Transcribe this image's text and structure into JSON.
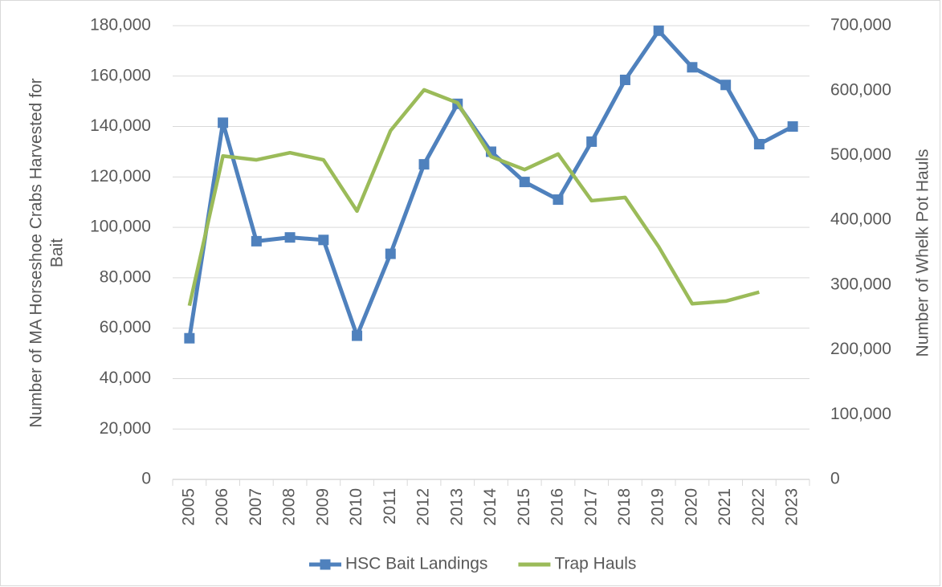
{
  "chart_data": {
    "type": "line",
    "ylabel": [
      "Number of MA Horseshoe Crabs Harvested for",
      "Bait"
    ],
    "y2label": "Number of Whelk Pot Hauls",
    "categories": [
      "2005",
      "2006",
      "2007",
      "2008",
      "2009",
      "2010",
      "2011",
      "2012",
      "2013",
      "2014",
      "2015",
      "2016",
      "2017",
      "2018",
      "2019",
      "2020",
      "2021",
      "2022",
      "2023"
    ],
    "series": [
      {
        "name": "HSC Bait Landings",
        "color": "#4f81bd",
        "marker": "square",
        "values": [
          56000,
          141500,
          94500,
          96000,
          95000,
          57000,
          89500,
          125000,
          149000,
          130000,
          118000,
          111000,
          134000,
          158500,
          178000,
          163500,
          156500,
          133000,
          140000
        ]
      },
      {
        "name": "Trap Hauls",
        "color": "#9bbb59",
        "axis": "y2",
        "values": [
          268000,
          499000,
          493000,
          504000,
          493000,
          414000,
          538000,
          601000,
          581000,
          498000,
          478000,
          502000,
          430000,
          435000,
          359000,
          271000,
          275000,
          289000,
          null
        ]
      }
    ],
    "ylim": [
      0,
      180000
    ],
    "yticks": [
      0,
      {
        "value": 20000,
        "label": "20,000"
      },
      {
        "value": 40000,
        "label": "40,000"
      },
      {
        "value": 60000,
        "label": "60,000"
      },
      {
        "value": 80000,
        "label": "80,000"
      },
      {
        "value": 100000,
        "label": "100,000"
      },
      {
        "value": 120000,
        "label": "120,000"
      },
      {
        "value": 140000,
        "label": "140,000"
      },
      {
        "value": 160000,
        "label": "160,000"
      },
      {
        "value": 180000,
        "label": "180,000"
      }
    ],
    "y2lim": [
      0,
      700000
    ],
    "y2ticks": [
      0,
      {
        "value": 100000,
        "label": "100,000"
      },
      {
        "value": 200000,
        "label": "200,000"
      },
      {
        "value": 300000,
        "label": "300,000"
      },
      {
        "value": 400000,
        "label": "400,000"
      },
      {
        "value": 500000,
        "label": "500,000"
      },
      {
        "value": 600000,
        "label": "600,000"
      },
      {
        "value": 700000,
        "label": "700,000"
      }
    ],
    "grid": true,
    "legend": "bottom"
  }
}
